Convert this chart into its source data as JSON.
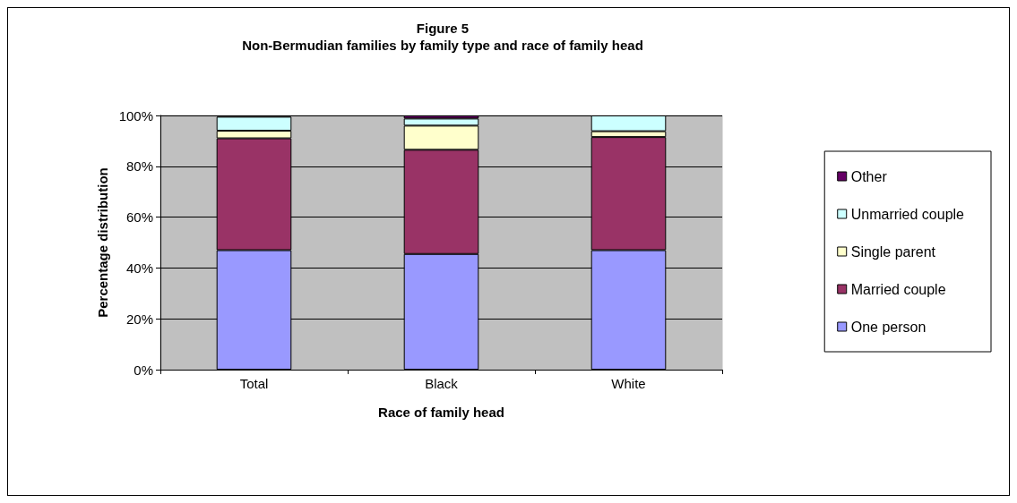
{
  "chart_data": {
    "type": "bar",
    "title": "Figure 5",
    "subtitle": "Non-Bermudian families by family type and race of family head",
    "xlabel": "Race of family head",
    "ylabel": "Percentage distribution",
    "categories": [
      "Total",
      "Black",
      "White"
    ],
    "series": [
      {
        "name": "One person",
        "color": "#9999ff",
        "values": [
          47,
          45.5,
          47
        ]
      },
      {
        "name": "Married couple",
        "color": "#993366",
        "values": [
          44,
          41,
          44.5
        ]
      },
      {
        "name": "Single parent",
        "color": "#ffffcc",
        "values": [
          3,
          9.5,
          2.3
        ]
      },
      {
        "name": "Unmarried couple",
        "color": "#ccffff",
        "values": [
          5.5,
          2.8,
          6.2
        ]
      },
      {
        "name": "Other",
        "color": "#660066",
        "values": [
          0.5,
          1.2,
          null
        ]
      }
    ],
    "stacked": true,
    "ylim": [
      0,
      100
    ],
    "yticks": [
      {
        "value": 0,
        "label": "0%"
      },
      {
        "value": 20,
        "label": "20%"
      },
      {
        "value": 40,
        "label": "40%"
      },
      {
        "value": 60,
        "label": "60%"
      },
      {
        "value": 80,
        "label": "80%"
      },
      {
        "value": 100,
        "label": "100%"
      }
    ],
    "grid": "y",
    "legend": "right"
  }
}
